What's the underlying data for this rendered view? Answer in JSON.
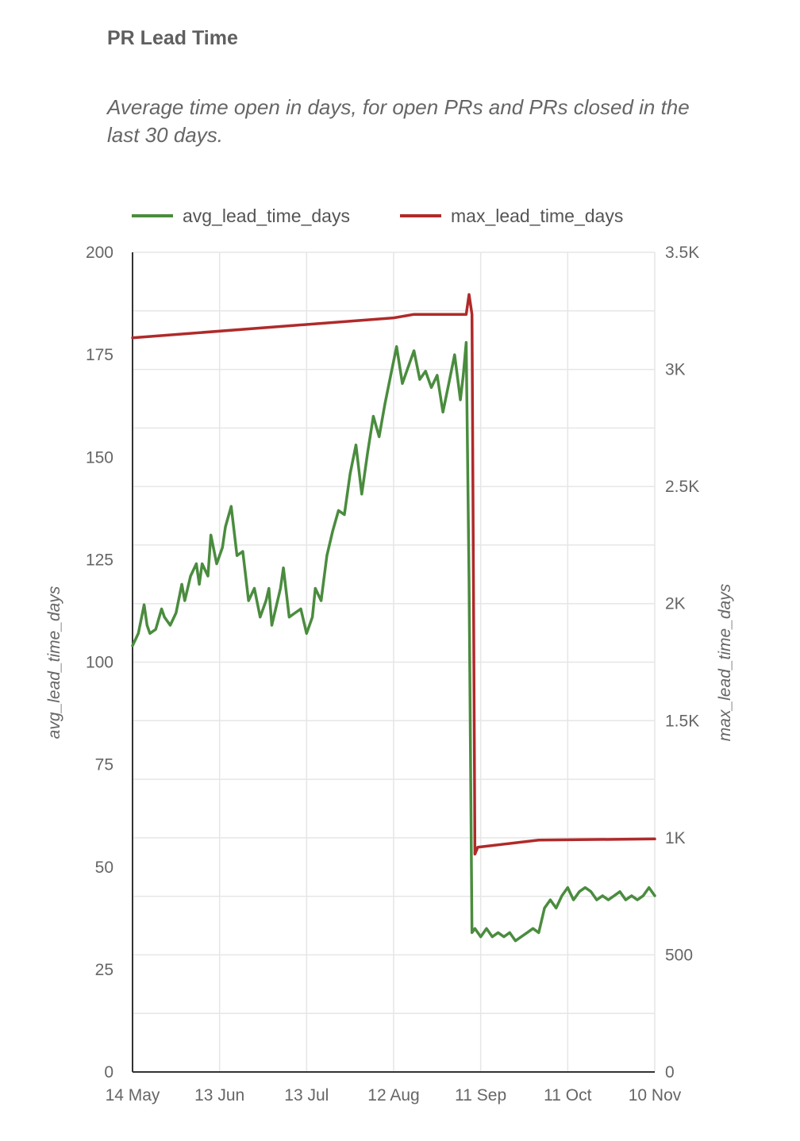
{
  "header": {
    "title": "PR Lead Time",
    "subtitle": "Average time open in days, for open PRs and PRs closed in the last 30 days."
  },
  "colors": {
    "avg": "#4a8c3e",
    "max": "#b02a2a",
    "grid": "#e6e6e6",
    "axis": "#333333"
  },
  "chart_data": {
    "type": "line",
    "x_start": "14 May",
    "x_end": "10 Nov",
    "x_ticks": [
      "14 May",
      "13 Jun",
      "13 Jul",
      "12 Aug",
      "11 Sep",
      "11 Oct",
      "10 Nov"
    ],
    "ylabel": "avg_lead_time_days",
    "y2label": "max_lead_time_days",
    "ylim": [
      0,
      200
    ],
    "y2lim": [
      0,
      3500
    ],
    "y_ticks": [
      "0",
      "25",
      "50",
      "75",
      "100",
      "125",
      "150",
      "175",
      "200"
    ],
    "y2_ticks": [
      "0",
      "500",
      "1K",
      "1.5K",
      "2K",
      "2.5K",
      "3K",
      "3.5K"
    ],
    "grid": true,
    "legend_position": "top",
    "series": [
      {
        "name": "avg_lead_time_days",
        "axis": "left",
        "color": "#4a8c3e",
        "points": [
          [
            "14 May",
            104
          ],
          [
            "16 May",
            107
          ],
          [
            "18 May",
            114
          ],
          [
            "19 May",
            109
          ],
          [
            "20 May",
            107
          ],
          [
            "22 May",
            108
          ],
          [
            "24 May",
            113
          ],
          [
            "25 May",
            111
          ],
          [
            "27 May",
            109
          ],
          [
            "29 May",
            112
          ],
          [
            "31 May",
            119
          ],
          [
            "1 Jun",
            115
          ],
          [
            "3 Jun",
            121
          ],
          [
            "5 Jun",
            124
          ],
          [
            "6 Jun",
            119
          ],
          [
            "7 Jun",
            124
          ],
          [
            "9 Jun",
            121
          ],
          [
            "10 Jun",
            131
          ],
          [
            "12 Jun",
            124
          ],
          [
            "14 Jun",
            128
          ],
          [
            "15 Jun",
            133
          ],
          [
            "17 Jun",
            138
          ],
          [
            "19 Jun",
            126
          ],
          [
            "21 Jun",
            127
          ],
          [
            "23 Jun",
            115
          ],
          [
            "25 Jun",
            118
          ],
          [
            "27 Jun",
            111
          ],
          [
            "29 Jun",
            115
          ],
          [
            "30 Jun",
            118
          ],
          [
            "1 Jul",
            109
          ],
          [
            "4 Jul",
            118
          ],
          [
            "5 Jul",
            123
          ],
          [
            "7 Jul",
            111
          ],
          [
            "9 Jul",
            112
          ],
          [
            "11 Jul",
            113
          ],
          [
            "13 Jul",
            107
          ],
          [
            "15 Jul",
            111
          ],
          [
            "16 Jul",
            118
          ],
          [
            "18 Jul",
            115
          ],
          [
            "20 Jul",
            126
          ],
          [
            "22 Jul",
            132
          ],
          [
            "24 Jul",
            137
          ],
          [
            "26 Jul",
            136
          ],
          [
            "28 Jul",
            146
          ],
          [
            "30 Jul",
            153
          ],
          [
            "1 Aug",
            141
          ],
          [
            "3 Aug",
            151
          ],
          [
            "5 Aug",
            160
          ],
          [
            "7 Aug",
            155
          ],
          [
            "9 Aug",
            163
          ],
          [
            "11 Aug",
            170
          ],
          [
            "13 Aug",
            177
          ],
          [
            "15 Aug",
            168
          ],
          [
            "17 Aug",
            172
          ],
          [
            "19 Aug",
            176
          ],
          [
            "21 Aug",
            169
          ],
          [
            "23 Aug",
            171
          ],
          [
            "25 Aug",
            167
          ],
          [
            "27 Aug",
            170
          ],
          [
            "29 Aug",
            161
          ],
          [
            "31 Aug",
            168
          ],
          [
            "2 Sep",
            175
          ],
          [
            "4 Sep",
            164
          ],
          [
            "5 Sep",
            170
          ],
          [
            "6 Sep",
            178
          ],
          [
            "7 Sep",
            120
          ],
          [
            "8 Sep",
            34
          ],
          [
            "9 Sep",
            35
          ],
          [
            "11 Sep",
            33
          ],
          [
            "13 Sep",
            35
          ],
          [
            "15 Sep",
            33
          ],
          [
            "17 Sep",
            34
          ],
          [
            "19 Sep",
            33
          ],
          [
            "21 Sep",
            34
          ],
          [
            "23 Sep",
            32
          ],
          [
            "25 Sep",
            33
          ],
          [
            "27 Sep",
            34
          ],
          [
            "29 Sep",
            35
          ],
          [
            "1 Oct",
            34
          ],
          [
            "3 Oct",
            40
          ],
          [
            "5 Oct",
            42
          ],
          [
            "7 Oct",
            40
          ],
          [
            "9 Oct",
            43
          ],
          [
            "11 Oct",
            45
          ],
          [
            "13 Oct",
            42
          ],
          [
            "15 Oct",
            44
          ],
          [
            "17 Oct",
            45
          ],
          [
            "19 Oct",
            44
          ],
          [
            "21 Oct",
            42
          ],
          [
            "23 Oct",
            43
          ],
          [
            "25 Oct",
            42
          ],
          [
            "27 Oct",
            43
          ],
          [
            "29 Oct",
            44
          ],
          [
            "31 Oct",
            42
          ],
          [
            "2 Nov",
            43
          ],
          [
            "4 Nov",
            42
          ],
          [
            "6 Nov",
            43
          ],
          [
            "8 Nov",
            45
          ],
          [
            "10 Nov",
            43
          ]
        ]
      },
      {
        "name": "max_lead_time_days",
        "axis": "right",
        "color": "#b02a2a",
        "points": [
          [
            "14 May",
            3135
          ],
          [
            "12 Aug",
            3220
          ],
          [
            "19 Aug",
            3235
          ],
          [
            "6 Sep",
            3235
          ],
          [
            "7 Sep",
            3320
          ],
          [
            "8 Sep",
            3235
          ],
          [
            "9 Sep",
            930
          ],
          [
            "10 Sep",
            960
          ],
          [
            "1 Oct",
            990
          ],
          [
            "10 Nov",
            995
          ]
        ]
      }
    ]
  }
}
